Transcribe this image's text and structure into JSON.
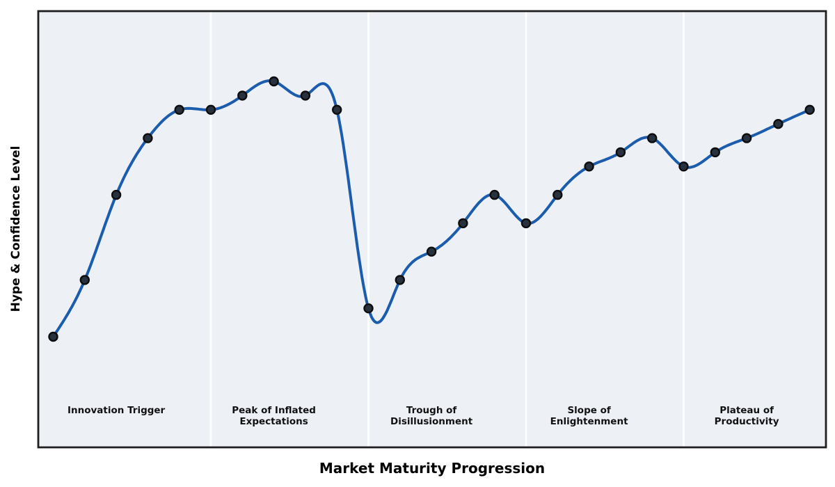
{
  "chart_data": {
    "type": "line",
    "title": "",
    "xlabel": "Market Maturity Progression",
    "ylabel": "Hype & Confidence Level",
    "curve_style": "smooth-cubic-spline",
    "markers": "filled-circles",
    "grid": false,
    "legend": "none",
    "tick_labels": "none",
    "x": [
      0,
      1,
      2,
      3,
      4,
      5,
      6,
      7,
      8,
      9,
      10,
      11,
      12,
      13,
      14,
      15,
      16,
      17,
      18,
      19,
      20,
      21,
      22,
      23,
      24
    ],
    "values": [
      5,
      25,
      55,
      75,
      85,
      85,
      90,
      95,
      90,
      85,
      15,
      25,
      35,
      45,
      55,
      45,
      55,
      65,
      70,
      75,
      65,
      70,
      75,
      80,
      85
    ],
    "xlim": [
      -0.5,
      24.5
    ],
    "ylim": [
      -35,
      120
    ],
    "phase_boundary_indices": [
      5,
      10,
      15,
      20
    ],
    "phases": [
      {
        "label_lines": [
          "Innovation Trigger"
        ],
        "center_index": 2
      },
      {
        "label_lines": [
          "Peak of Inflated",
          "Expectations"
        ],
        "center_index": 7
      },
      {
        "label_lines": [
          "Trough of",
          "Disillusionment"
        ],
        "center_index": 12
      },
      {
        "label_lines": [
          "Slope of",
          "Enlightenment"
        ],
        "center_index": 17
      },
      {
        "label_lines": [
          "Plateau of",
          "Productivity"
        ],
        "center_index": 22
      }
    ],
    "colors": {
      "line": "#1b5cad",
      "marker_fill": "#28323e",
      "marker_edge": "#0d0d0d",
      "plot_background": "#edf1f6",
      "figure_background": "#ffffff",
      "phase_divider": "#ffffff",
      "spine": "#1f1f1f",
      "axis_label_text": "#000000",
      "phase_label_text": "#111111"
    }
  }
}
